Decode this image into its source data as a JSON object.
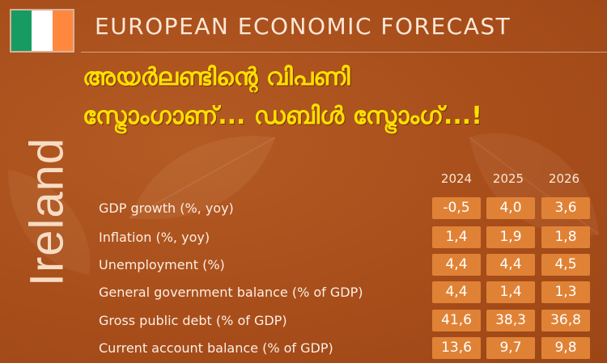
{
  "header": {
    "title": "EUROPEAN ECONOMIC FORECAST",
    "flag_colors": [
      "#169b62",
      "#ffffff",
      "#ff883e"
    ]
  },
  "headline": {
    "line1": "അയർലണ്ടിന്റെ വിപണി",
    "line2": "സ്ട്രോംഗാണ്... ഡബിൾ സ്ട്രോംഗ്...!",
    "color": "#ffdf00"
  },
  "country": "Ireland",
  "table": {
    "years": [
      "2024",
      "2025",
      "2026"
    ],
    "rows": [
      {
        "label": "GDP growth (%, yoy)",
        "values": [
          "-0,5",
          "4,0",
          "3,6"
        ]
      },
      {
        "label": "Inflation (%, yoy)",
        "values": [
          "1,4",
          "1,9",
          "1,8"
        ]
      },
      {
        "label": "Unemployment (%)",
        "values": [
          "4,4",
          "4,4",
          "4,5"
        ]
      },
      {
        "label": "General government balance (% of GDP)",
        "values": [
          "4,4",
          "1,4",
          "1,3"
        ]
      },
      {
        "label": "Gross public debt (% of GDP)",
        "values": [
          "41,6",
          "38,3",
          "36,8"
        ]
      },
      {
        "label": "Current account balance (% of GDP)",
        "values": [
          "13,6",
          "9,7",
          "9,8"
        ]
      }
    ],
    "cell_color": "#e08236"
  }
}
